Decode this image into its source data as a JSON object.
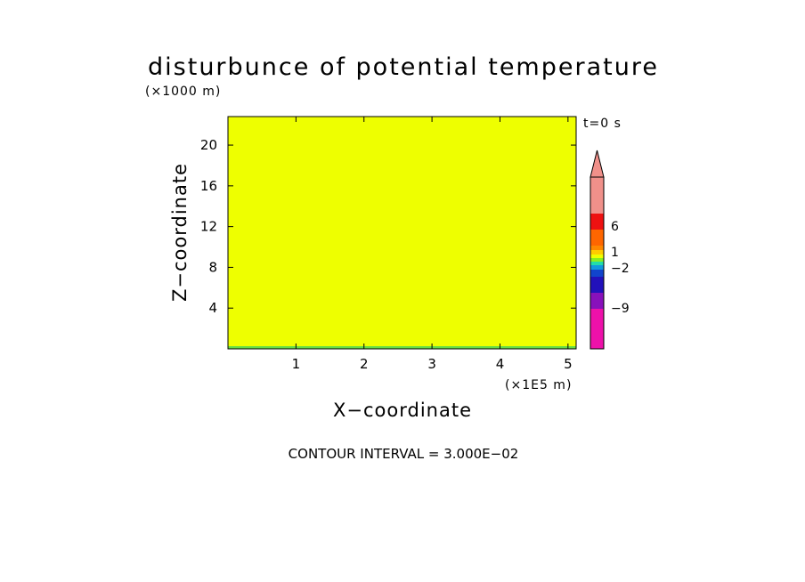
{
  "chart_data": {
    "type": "heatmap",
    "title": "disturbunce of potential temperature",
    "xlabel": "X−coordinate",
    "ylabel": "Z−coordinate",
    "x_unit_label": "(×1E5 m)",
    "y_unit_label": "(×1000 m)",
    "time_label": "t=0 s",
    "contour_label": "CONTOUR INTERVAL = 3.000E−02",
    "xlim": [
      0,
      5.12
    ],
    "ylim": [
      0,
      22.8
    ],
    "x_ticks": [
      1,
      2,
      3,
      4,
      5
    ],
    "y_ticks": [
      4,
      8,
      12,
      16,
      20
    ],
    "x_tick_labels": [
      "1",
      "2",
      "3",
      "4",
      "5"
    ],
    "y_tick_labels": [
      "4",
      "8",
      "12",
      "16",
      "20"
    ],
    "field": {
      "fill_color": "#eeff00",
      "description_value": 0,
      "bottom_edge_color": "#66dd44"
    },
    "colorbar": {
      "levels": [
        {
          "color": "#ee11aa"
        },
        {
          "color": "#8811bb"
        },
        {
          "color": "#2211bb"
        },
        {
          "color": "#1144cc"
        },
        {
          "color": "#1199dd"
        },
        {
          "color": "#22ddaa"
        },
        {
          "color": "#88ee22"
        },
        {
          "color": "#eeff00"
        },
        {
          "color": "#ffcc00"
        },
        {
          "color": "#ff8800"
        },
        {
          "color": "#ff6600"
        },
        {
          "color": "#ee1111"
        },
        {
          "color": "#f0908a"
        }
      ],
      "tick_labels": [
        "6",
        "1",
        "−2",
        "−9"
      ],
      "extend_color": "#f0908a"
    }
  }
}
